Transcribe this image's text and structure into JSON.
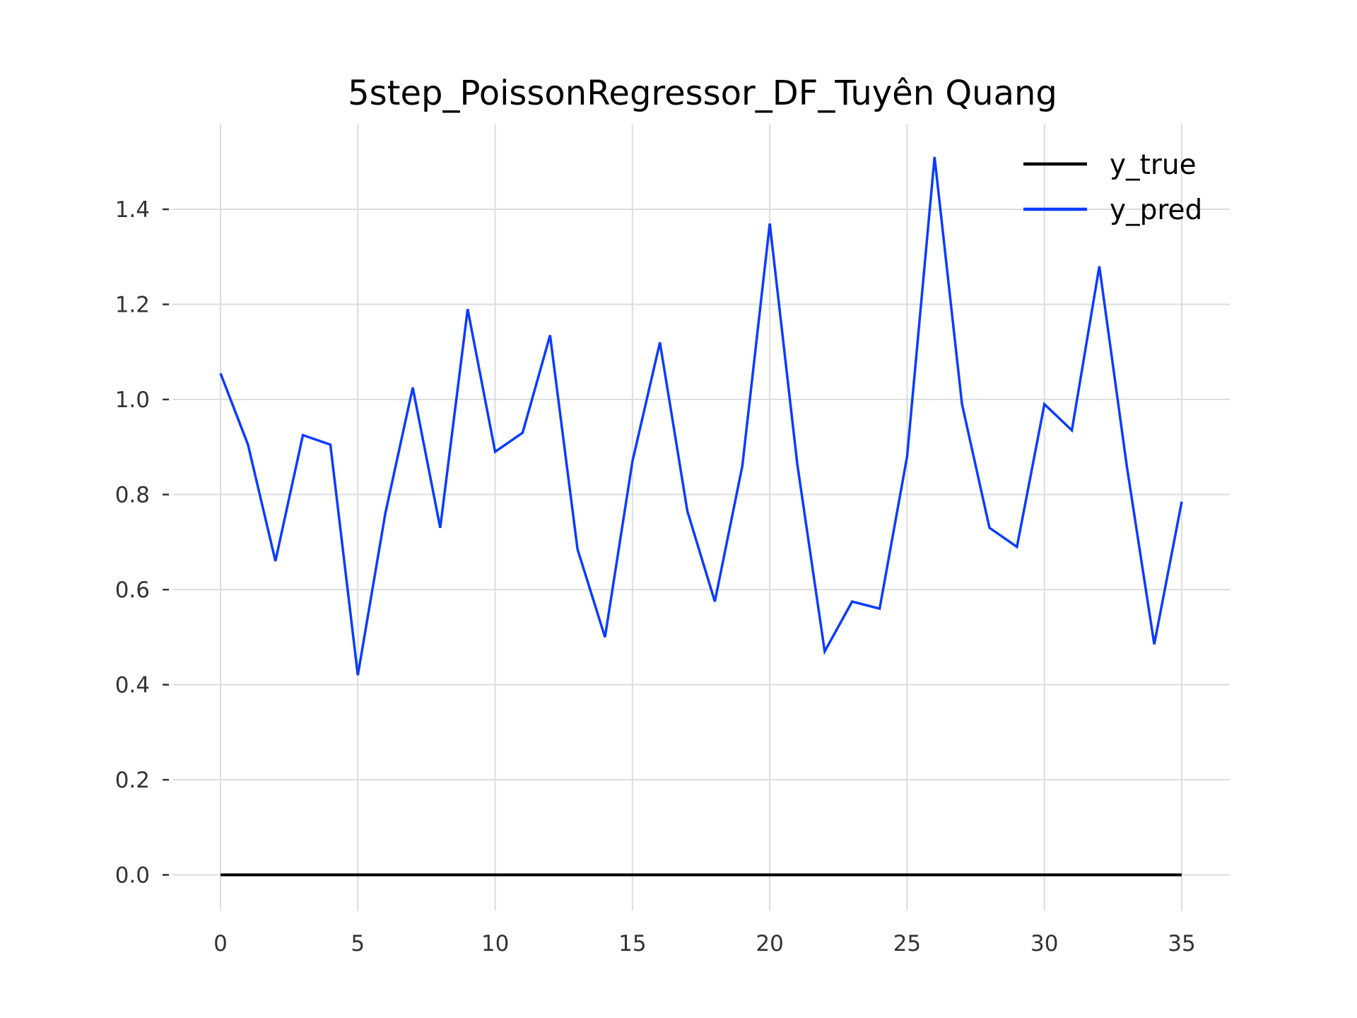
{
  "chart_data": {
    "type": "line",
    "title": "5step_PoissonRegressor_DF_Tuyên Quang",
    "xlabel": "",
    "ylabel": "",
    "xlim": [
      -1.75,
      36.75
    ],
    "ylim": [
      -0.075,
      1.58
    ],
    "x_ticks": [
      0,
      5,
      10,
      15,
      20,
      25,
      30,
      35
    ],
    "y_ticks": [
      0.0,
      0.2,
      0.4,
      0.6,
      0.8,
      1.0,
      1.2,
      1.4
    ],
    "x_tick_labels": [
      "0",
      "5",
      "10",
      "15",
      "20",
      "25",
      "30",
      "35"
    ],
    "y_tick_labels": [
      "0.0",
      "0.2",
      "0.4",
      "0.6",
      "0.8",
      "1.0",
      "1.2",
      "1.4"
    ],
    "grid": true,
    "legend_position": "top-right",
    "x": [
      0,
      1,
      2,
      3,
      4,
      5,
      6,
      7,
      8,
      9,
      10,
      11,
      12,
      13,
      14,
      15,
      16,
      17,
      18,
      19,
      20,
      21,
      22,
      23,
      24,
      25,
      26,
      27,
      28,
      29,
      30,
      31,
      32,
      33,
      34,
      35
    ],
    "series": [
      {
        "name": "y_true",
        "color": "#000000",
        "values": [
          0,
          0,
          0,
          0,
          0,
          0,
          0,
          0,
          0,
          0,
          0,
          0,
          0,
          0,
          0,
          0,
          0,
          0,
          0,
          0,
          0,
          0,
          0,
          0,
          0,
          0,
          0,
          0,
          0,
          0,
          0,
          0,
          0,
          0,
          0,
          0
        ]
      },
      {
        "name": "y_pred",
        "color": "#0a3cff",
        "values": [
          1.055,
          0.905,
          0.66,
          0.925,
          0.905,
          0.42,
          0.76,
          1.025,
          0.73,
          1.19,
          0.89,
          0.93,
          1.135,
          0.685,
          0.5,
          0.87,
          1.12,
          0.765,
          0.575,
          0.86,
          1.37,
          0.865,
          0.47,
          0.575,
          0.56,
          0.88,
          1.51,
          0.99,
          0.73,
          0.69,
          0.99,
          0.935,
          1.28,
          0.86,
          0.485,
          0.785
        ]
      }
    ]
  }
}
